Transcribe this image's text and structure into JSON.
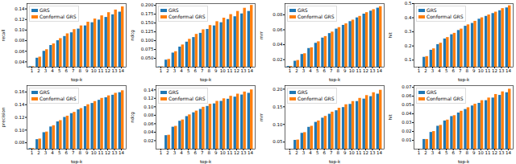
{
  "chart_data": [
    {
      "type": "bar",
      "x_label": "top-k",
      "y_label": "recall",
      "legend": "upper left",
      "x": [
        1,
        2,
        3,
        4,
        5,
        6,
        7,
        8,
        9,
        10,
        11,
        12,
        13,
        14
      ],
      "xlim": [
        0.3,
        14.7
      ],
      "xticks": [
        1,
        2,
        3,
        4,
        5,
        6,
        7,
        8,
        9,
        10,
        11,
        12,
        13,
        14
      ],
      "ylim": [
        0.03,
        0.15
      ],
      "yticks": [
        0.04,
        0.06,
        0.08,
        {
          "value": 0.1,
          "label": "0.10"
        },
        0.12,
        0.14
      ],
      "series": [
        {
          "name": "GRS",
          "color": "#1f77b4",
          "values": [
            0.031,
            0.047,
            0.06,
            0.071,
            0.08,
            0.088,
            0.095,
            0.102,
            0.108,
            0.114,
            0.119,
            0.124,
            0.129,
            0.134
          ]
        },
        {
          "name": "Conformal GRS",
          "color": "#ff7f0e",
          "values": [
            0.031,
            0.049,
            0.063,
            0.074,
            0.084,
            0.093,
            0.101,
            0.108,
            0.115,
            0.121,
            0.127,
            0.133,
            0.138,
            0.144
          ]
        }
      ]
    },
    {
      "type": "bar",
      "x_label": "top-k",
      "y_label": "ndcg",
      "legend": "upper left",
      "x": [
        1,
        2,
        3,
        4,
        5,
        6,
        7,
        8,
        9,
        10,
        11,
        12,
        13,
        14
      ],
      "xlim": [
        0.3,
        14.7
      ],
      "xticks": [
        1,
        2,
        3,
        4,
        5,
        6,
        7,
        8,
        9,
        10,
        11,
        12,
        13,
        14
      ],
      "ylim": [
        0.025,
        0.205
      ],
      "yticks": [
        {
          "value": 0.05,
          "label": "0.050"
        },
        0.075,
        {
          "value": 0.1,
          "label": "0.100"
        },
        0.125,
        {
          "value": 0.15,
          "label": "0.150"
        },
        0.175,
        {
          "value": 0.2,
          "label": "0.200"
        }
      ],
      "series": [
        {
          "name": "GRS",
          "color": "#1f77b4",
          "values": [
            0.026,
            0.045,
            0.065,
            0.082,
            0.096,
            0.109,
            0.121,
            0.132,
            0.142,
            0.151,
            0.16,
            0.168,
            0.176,
            0.183
          ]
        },
        {
          "name": "Conformal GRS",
          "color": "#ff7f0e",
          "values": [
            0.026,
            0.047,
            0.069,
            0.088,
            0.104,
            0.118,
            0.131,
            0.143,
            0.154,
            0.164,
            0.174,
            0.183,
            0.192,
            0.2
          ]
        }
      ]
    },
    {
      "type": "bar",
      "x_label": "top-k",
      "y_label": "mrr",
      "legend": "upper left",
      "x": [
        1,
        2,
        3,
        4,
        5,
        6,
        7,
        8,
        9,
        10,
        11,
        12,
        13,
        14
      ],
      "xlim": [
        0.3,
        14.7
      ],
      "xticks": [
        1,
        2,
        3,
        4,
        5,
        6,
        7,
        8,
        9,
        10,
        11,
        12,
        13,
        14
      ],
      "ylim": [
        0.01,
        0.095
      ],
      "yticks": [
        0.02,
        0.04,
        0.06,
        0.08
      ],
      "series": [
        {
          "name": "GRS",
          "color": "#1f77b4",
          "values": [
            0.011,
            0.018,
            0.027,
            0.035,
            0.042,
            0.049,
            0.055,
            0.061,
            0.066,
            0.071,
            0.076,
            0.081,
            0.085,
            0.089
          ]
        },
        {
          "name": "Conformal GRS",
          "color": "#ff7f0e",
          "values": [
            0.011,
            0.019,
            0.028,
            0.036,
            0.044,
            0.051,
            0.057,
            0.063,
            0.068,
            0.073,
            0.078,
            0.083,
            0.087,
            0.091
          ]
        }
      ]
    },
    {
      "type": "bar",
      "x_label": "top-k",
      "y_label": "hit",
      "legend": "upper left",
      "x": [
        1,
        2,
        3,
        4,
        5,
        6,
        7,
        8,
        9,
        10,
        11,
        12,
        13,
        14
      ],
      "xlim": [
        0.3,
        14.7
      ],
      "xticks": [
        1,
        2,
        3,
        4,
        5,
        6,
        7,
        8,
        9,
        10,
        11,
        12,
        13,
        14
      ],
      "ylim": [
        0.05,
        0.5
      ],
      "yticks": [
        0.1,
        0.2,
        0.3,
        0.4,
        0.5
      ],
      "series": [
        {
          "name": "GRS",
          "color": "#1f77b4",
          "values": [
            0.05,
            0.12,
            0.17,
            0.21,
            0.25,
            0.28,
            0.31,
            0.34,
            0.36,
            0.39,
            0.41,
            0.43,
            0.45,
            0.47
          ]
        },
        {
          "name": "Conformal GRS",
          "color": "#ff7f0e",
          "values": [
            0.05,
            0.125,
            0.18,
            0.22,
            0.26,
            0.29,
            0.32,
            0.35,
            0.375,
            0.4,
            0.42,
            0.44,
            0.465,
            0.485
          ]
        }
      ]
    },
    {
      "type": "bar",
      "x_label": "top-k",
      "y_label": "precision",
      "legend": "upper left",
      "x": [
        1,
        2,
        3,
        4,
        5,
        6,
        7,
        8,
        9,
        10,
        11,
        12,
        13,
        14
      ],
      "xlim": [
        0.3,
        14.7
      ],
      "xticks": [
        1,
        2,
        3,
        4,
        5,
        6,
        7,
        8,
        9,
        10,
        11,
        12,
        13,
        14
      ],
      "ylim": [
        0.07,
        0.17
      ],
      "yticks": [
        0.08,
        {
          "value": 0.1,
          "label": "0.10"
        },
        0.12,
        0.14,
        0.16
      ],
      "series": [
        {
          "name": "GRS",
          "color": "#1f77b4",
          "values": [
            0.071,
            0.085,
            0.096,
            0.105,
            0.113,
            0.12,
            0.126,
            0.132,
            0.137,
            0.142,
            0.147,
            0.151,
            0.155,
            0.159
          ]
        },
        {
          "name": "Conformal GRS",
          "color": "#ff7f0e",
          "values": [
            0.071,
            0.086,
            0.097,
            0.107,
            0.115,
            0.122,
            0.128,
            0.134,
            0.14,
            0.145,
            0.15,
            0.154,
            0.158,
            0.162
          ]
        }
      ]
    },
    {
      "type": "bar",
      "x_label": "top-k",
      "y_label": "ndcg",
      "legend": "upper left",
      "x": [
        1,
        2,
        3,
        4,
        5,
        6,
        7,
        8,
        9,
        10,
        11,
        12,
        13,
        14
      ],
      "xlim": [
        0.3,
        14.7
      ],
      "xticks": [
        1,
        2,
        3,
        4,
        5,
        6,
        7,
        8,
        9,
        10,
        11,
        12,
        13,
        14
      ],
      "ylim": [
        0,
        0.15
      ],
      "yticks": [
        0.02,
        0.04,
        0.06,
        0.08,
        {
          "value": 0.1,
          "label": "0.10"
        },
        0.12,
        0.14
      ],
      "series": [
        {
          "name": "GRS",
          "color": "#1f77b4",
          "values": [
            0.0,
            0.032,
            0.052,
            0.066,
            0.077,
            0.086,
            0.094,
            0.101,
            0.107,
            0.113,
            0.118,
            0.123,
            0.128,
            0.132
          ]
        },
        {
          "name": "Conformal GRS",
          "color": "#ff7f0e",
          "values": [
            0.0,
            0.033,
            0.054,
            0.069,
            0.081,
            0.09,
            0.099,
            0.106,
            0.113,
            0.119,
            0.125,
            0.13,
            0.135,
            0.14
          ]
        }
      ]
    },
    {
      "type": "bar",
      "x_label": "top-k",
      "y_label": "mrr",
      "legend": "upper left",
      "x": [
        1,
        2,
        3,
        4,
        5,
        6,
        7,
        8,
        9,
        10,
        11,
        12,
        13,
        14
      ],
      "xlim": [
        0.3,
        14.7
      ],
      "xticks": [
        1,
        2,
        3,
        4,
        5,
        6,
        7,
        8,
        9,
        10,
        11,
        12,
        13,
        14
      ],
      "ylim": [
        0.03,
        0.21
      ],
      "yticks": [
        0.05,
        {
          "value": 0.1,
          "label": "0.10"
        },
        0.15,
        {
          "value": 0.2,
          "label": "0.20"
        }
      ],
      "series": [
        {
          "name": "GRS",
          "color": "#1f77b4",
          "values": [
            0.03,
            0.055,
            0.075,
            0.092,
            0.106,
            0.118,
            0.129,
            0.139,
            0.148,
            0.157,
            0.165,
            0.172,
            0.179,
            0.186
          ]
        },
        {
          "name": "Conformal GRS",
          "color": "#ff7f0e",
          "values": [
            0.03,
            0.056,
            0.077,
            0.095,
            0.11,
            0.123,
            0.135,
            0.146,
            0.156,
            0.165,
            0.174,
            0.182,
            0.19,
            0.197
          ]
        }
      ]
    },
    {
      "type": "bar",
      "x_label": "top-k",
      "y_label": "hit",
      "legend": "upper left",
      "x": [
        1,
        2,
        3,
        4,
        5,
        6,
        7,
        8,
        9,
        10,
        11,
        12,
        13,
        14
      ],
      "xlim": [
        0.3,
        14.7
      ],
      "xticks": [
        1,
        2,
        3,
        4,
        5,
        6,
        7,
        8,
        9,
        10,
        11,
        12,
        13,
        14
      ],
      "ylim": [
        0,
        0.072
      ],
      "yticks": [
        0.01,
        0.02,
        0.03,
        0.04,
        0.05,
        0.06,
        0.07
      ],
      "series": [
        {
          "name": "GRS",
          "color": "#1f77b4",
          "values": [
            0.0,
            0.011,
            0.019,
            0.026,
            0.032,
            0.037,
            0.041,
            0.045,
            0.049,
            0.052,
            0.055,
            0.058,
            0.061,
            0.064
          ]
        },
        {
          "name": "Conformal GRS",
          "color": "#ff7f0e",
          "values": [
            0.0,
            0.011,
            0.02,
            0.027,
            0.033,
            0.038,
            0.043,
            0.047,
            0.051,
            0.055,
            0.058,
            0.062,
            0.065,
            0.068
          ]
        }
      ]
    }
  ]
}
